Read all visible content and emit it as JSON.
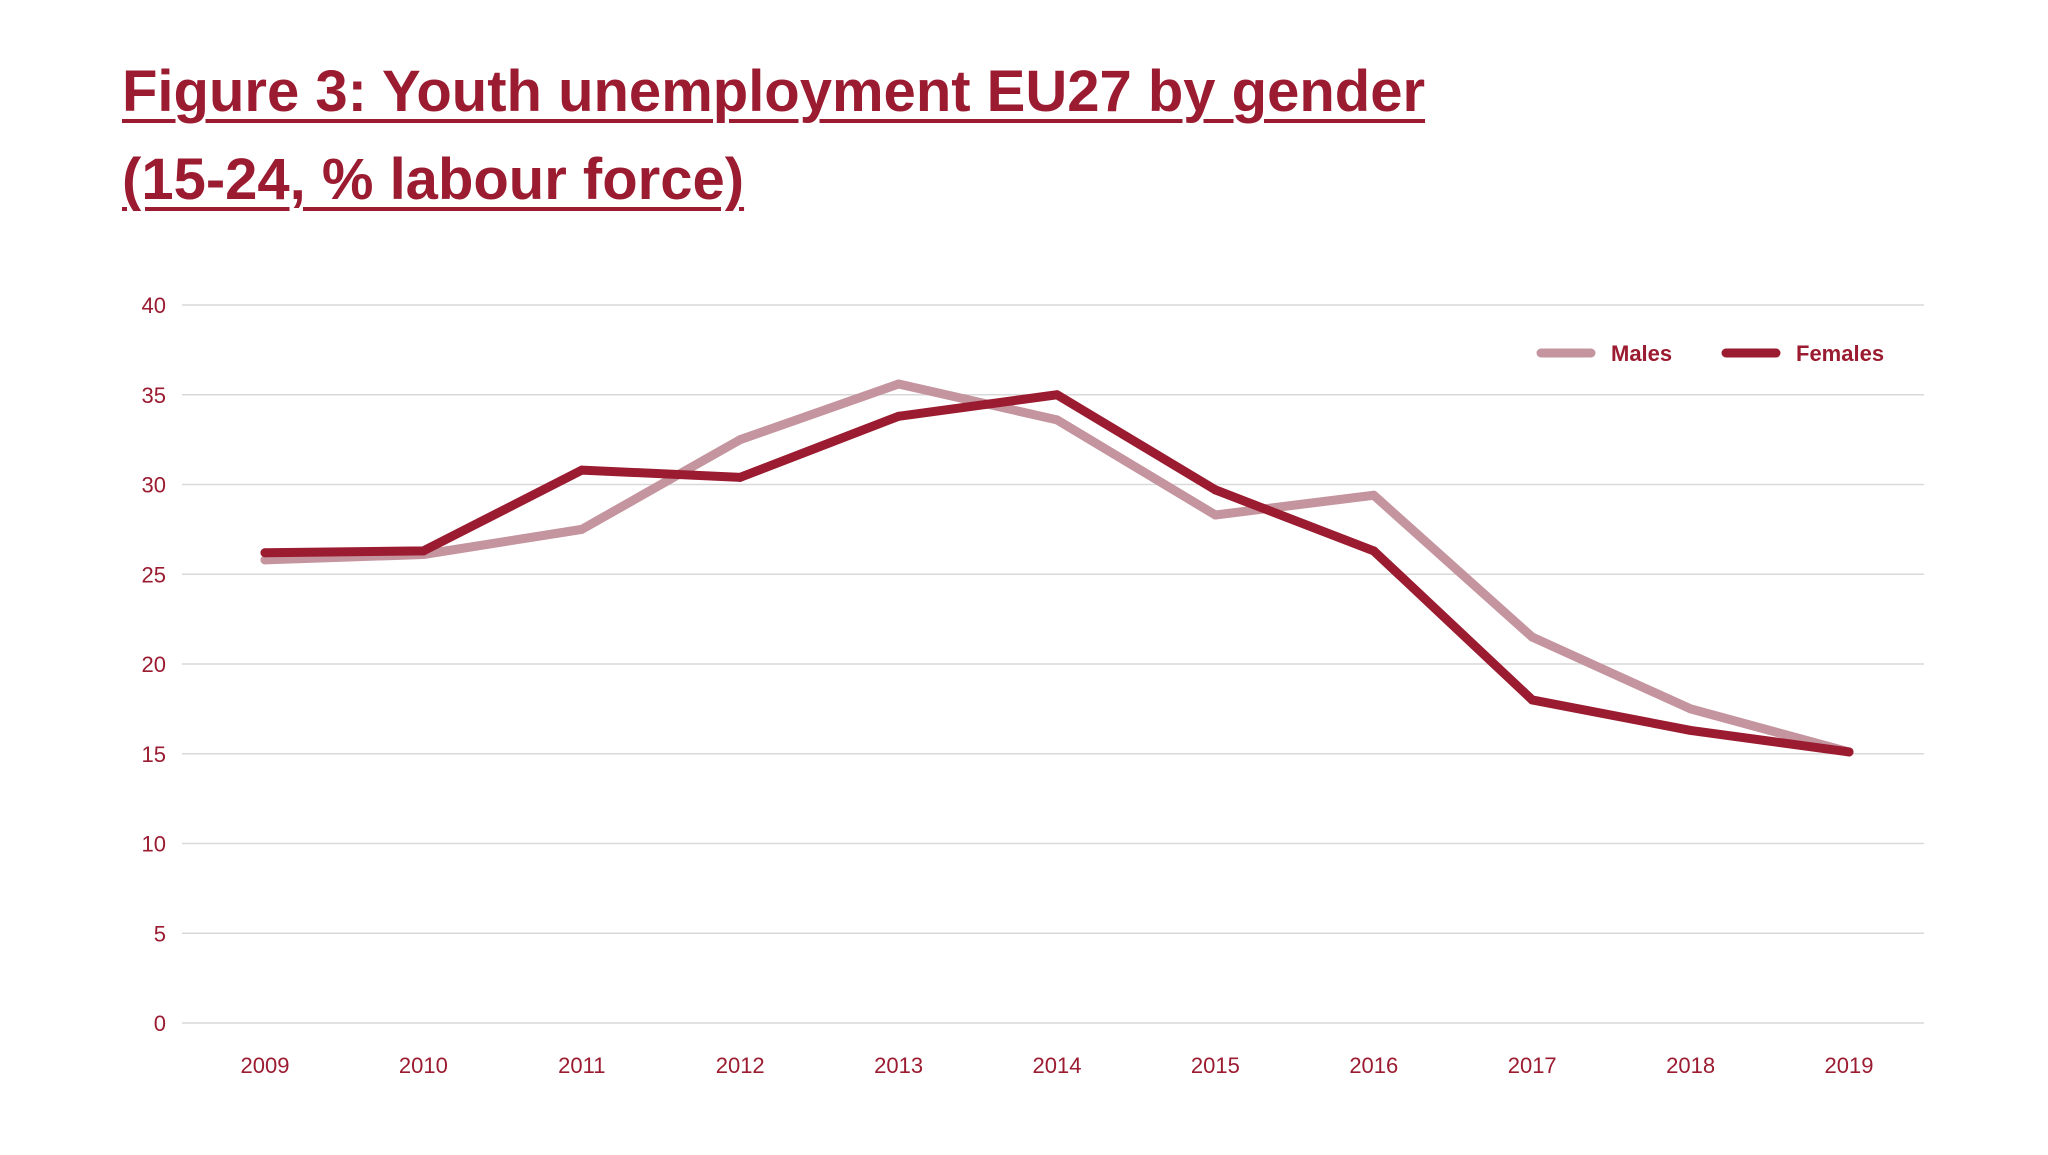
{
  "title_lines": [
    "Figure 3: Youth unemployment EU27 by gender",
    "(15-24, % labour force)"
  ],
  "colors": {
    "title": "#9b1b30",
    "tick_label": "#9b1b30",
    "gridline": "#d9d9d9",
    "males": "#c4949f",
    "females": "#9b1b30"
  },
  "chart_data": {
    "type": "line",
    "title": "Figure 3: Youth unemployment EU27 by gender (15-24, % labour force)",
    "xlabel": "",
    "ylabel": "",
    "categories": [
      "2009",
      "2010",
      "2011",
      "2012",
      "2013",
      "2014",
      "2015",
      "2016",
      "2017",
      "2018",
      "2019"
    ],
    "ylim": [
      0,
      40
    ],
    "yticks": [
      0,
      5,
      10,
      15,
      20,
      25,
      30,
      35,
      40
    ],
    "grid": true,
    "legend_position": "top-right",
    "series": [
      {
        "name": "Males",
        "color": "#c4949f",
        "values": [
          25.8,
          26.1,
          27.5,
          32.5,
          35.6,
          33.6,
          28.3,
          29.4,
          21.5,
          17.5,
          15.1
        ]
      },
      {
        "name": "Females",
        "color": "#9b1b30",
        "values": [
          26.2,
          26.3,
          30.8,
          30.4,
          33.8,
          35.0,
          29.7,
          26.3,
          18.0,
          16.3,
          15.1
        ]
      }
    ]
  }
}
